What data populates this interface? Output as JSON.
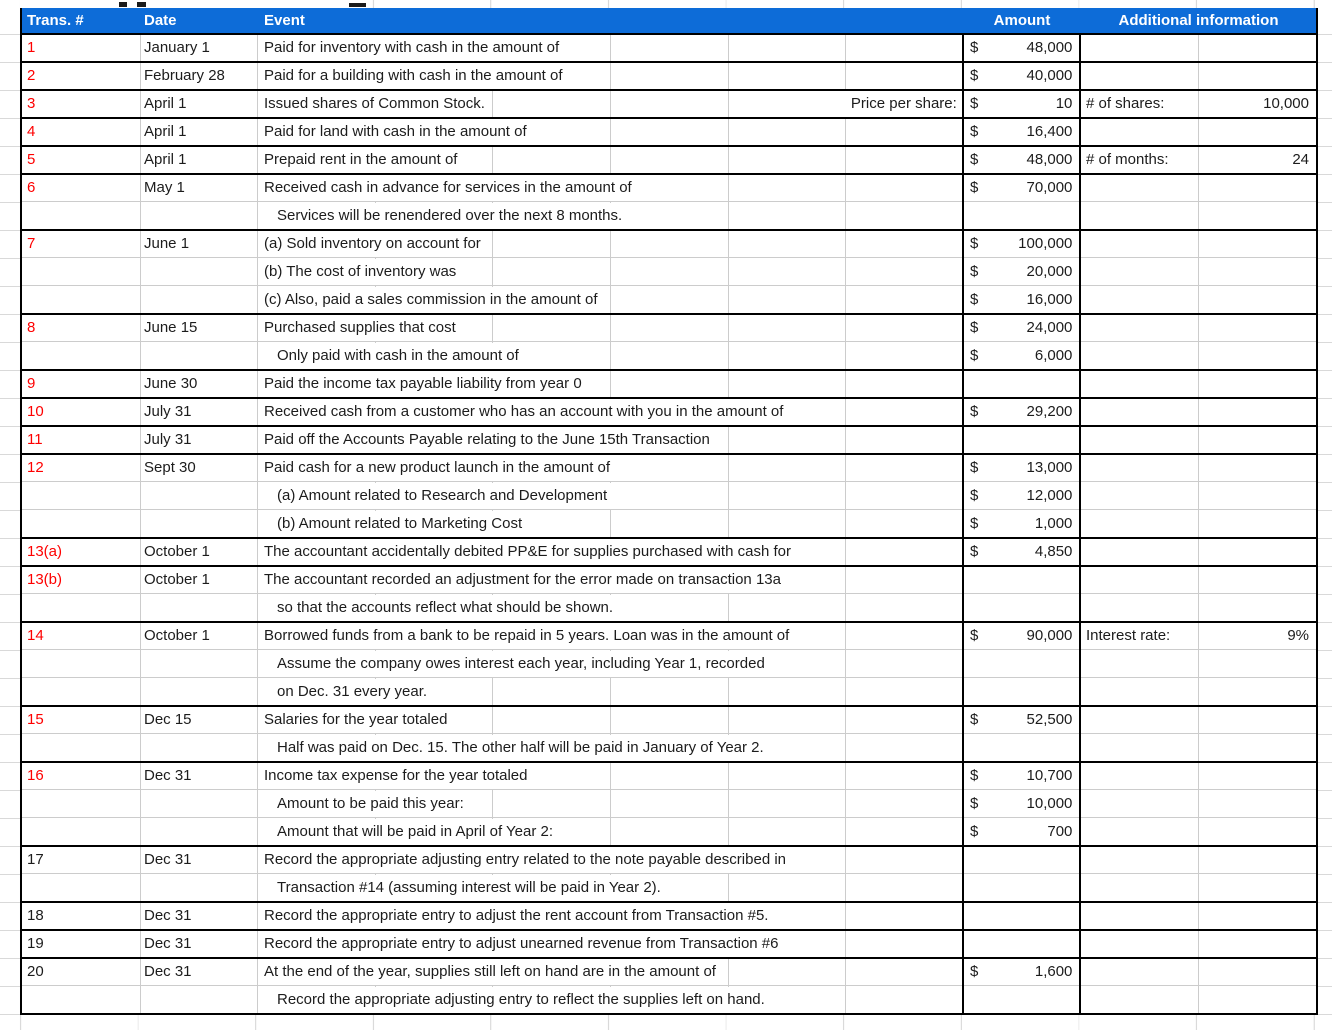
{
  "sheet": {
    "currency": "$",
    "colors": {
      "header_bg": "#0d6cd8",
      "header_text": "#ffffff",
      "trans_number_red": "#fe0000",
      "body_text": "#1c1c1c",
      "group_border": "#000000",
      "inner_gridline": "#cccccc",
      "outer_gridline": "#d9d9d9"
    },
    "header": {
      "trans": "Trans. #",
      "date": "Date",
      "event": "Event",
      "amount": "Amount",
      "additional": "Additional information"
    },
    "transactions": [
      {
        "trans": "1",
        "color": "red",
        "date": "January 1",
        "lines": [
          {
            "event": "Paid for inventory with cash in the amount of",
            "amount": "48,000"
          }
        ]
      },
      {
        "trans": "2",
        "color": "red",
        "date": "February 28",
        "lines": [
          {
            "event": "Paid for a building with cash in the amount of",
            "amount": "40,000"
          }
        ]
      },
      {
        "trans": "3",
        "color": "red",
        "date": "April 1",
        "lines": [
          {
            "event": "Issued shares of Common Stock.",
            "right_label": "Price per share:",
            "amount": "10",
            "extra_label": "# of shares:",
            "extra_value": "10,000"
          }
        ]
      },
      {
        "trans": "4",
        "color": "red",
        "date": "April 1",
        "lines": [
          {
            "event": "Paid for land with cash in the amount of",
            "amount": "16,400"
          }
        ]
      },
      {
        "trans": "5",
        "color": "red",
        "date": "April 1",
        "lines": [
          {
            "event": "Prepaid rent in the amount of",
            "amount": "48,000",
            "extra_label": "# of months:",
            "extra_value": "24"
          }
        ]
      },
      {
        "trans": "6",
        "color": "red",
        "date": "May 1",
        "lines": [
          {
            "event": "Received cash in advance for services in the amount of",
            "amount": "70,000"
          },
          {
            "event": "Services will be renendered over the next 8 months.",
            "indent": true
          }
        ]
      },
      {
        "trans": "7",
        "color": "red",
        "date": "June 1",
        "lines": [
          {
            "event": "(a) Sold inventory on account for",
            "amount": "100,000"
          },
          {
            "event": "(b) The cost of inventory was",
            "amount": "20,000"
          },
          {
            "event": "(c) Also, paid a sales commission in the amount of",
            "amount": "16,000"
          }
        ]
      },
      {
        "trans": "8",
        "color": "red",
        "date": "June 15",
        "lines": [
          {
            "event": "Purchased supplies that cost",
            "amount": "24,000"
          },
          {
            "event": "Only paid with cash in the amount of",
            "indent": true,
            "amount": "6,000"
          }
        ]
      },
      {
        "trans": "9",
        "color": "red",
        "date": "June 30",
        "lines": [
          {
            "event": "Paid the income tax payable liability from year 0"
          }
        ]
      },
      {
        "trans": "10",
        "color": "red",
        "date": "July 31",
        "lines": [
          {
            "event": "Received cash from a customer who has an account with you in the amount of",
            "amount": "29,200"
          }
        ]
      },
      {
        "trans": "11",
        "color": "red",
        "date": "July 31",
        "lines": [
          {
            "event": "Paid off the Accounts Payable relating to the June 15th Transaction"
          }
        ]
      },
      {
        "trans": "12",
        "color": "red",
        "date": "Sept 30",
        "lines": [
          {
            "event": "Paid cash for a new product launch in the amount of",
            "amount": "13,000"
          },
          {
            "event": "(a) Amount related to Research and Development",
            "indent": true,
            "amount": "12,000"
          },
          {
            "event": "(b) Amount related to Marketing Cost",
            "indent": true,
            "amount": "1,000"
          }
        ]
      },
      {
        "trans": "13(a)",
        "color": "red",
        "date": "October 1",
        "lines": [
          {
            "event": "The accountant accidentally debited PP&E for supplies purchased with cash for",
            "amount": "4,850"
          }
        ]
      },
      {
        "trans": "13(b)",
        "color": "red",
        "date": "October 1",
        "lines": [
          {
            "event": "The accountant recorded an adjustment for the error made on transaction 13a"
          },
          {
            "event": "so that the accounts reflect what should be shown.",
            "indent": true
          }
        ]
      },
      {
        "trans": "14",
        "color": "red",
        "date": "October 1",
        "lines": [
          {
            "event": "Borrowed funds from a bank to be repaid in 5 years. Loan was in the amount of",
            "amount": "90,000",
            "extra_label": "Interest rate:",
            "extra_value": "9%"
          },
          {
            "event": "Assume the company owes interest each year, including Year 1, recorded",
            "indent": true
          },
          {
            "event": "on Dec. 31 every year.",
            "indent": true
          }
        ]
      },
      {
        "trans": "15",
        "color": "red",
        "date": "Dec 15",
        "lines": [
          {
            "event": "Salaries for the year totaled",
            "amount": "52,500"
          },
          {
            "event": "Half was paid on Dec. 15. The other half will be paid in January of Year 2.",
            "indent": true
          }
        ]
      },
      {
        "trans": "16",
        "color": "red",
        "date": "Dec 31",
        "lines": [
          {
            "event": "Income tax expense for the year totaled",
            "amount": "10,700"
          },
          {
            "event": "Amount to be paid this year:",
            "indent": true,
            "amount": "10,000"
          },
          {
            "event": "Amount that will be paid in April of Year 2:",
            "indent": true,
            "amount": "700"
          }
        ]
      },
      {
        "trans": "17",
        "color": "black",
        "date": "Dec 31",
        "lines": [
          {
            "event": "Record the appropriate adjusting entry related to the note payable described in"
          },
          {
            "event": "Transaction #14 (assuming interest will be paid in Year 2).",
            "indent": true
          }
        ]
      },
      {
        "trans": "18",
        "color": "black",
        "date": "Dec 31",
        "lines": [
          {
            "event": "Record the appropriate entry to adjust the rent account from Transaction #5."
          }
        ]
      },
      {
        "trans": "19",
        "color": "black",
        "date": "Dec 31",
        "lines": [
          {
            "event": "Record the appropriate entry to adjust unearned revenue from Transaction #6"
          }
        ]
      },
      {
        "trans": "20",
        "color": "black",
        "date": "Dec 31",
        "lines": [
          {
            "event": "At the end of the year, supplies still left on hand are in the amount of",
            "amount": "1,600"
          },
          {
            "event": "Record the appropriate adjusting entry to reflect the supplies left on hand.",
            "indent": true
          }
        ]
      }
    ]
  }
}
